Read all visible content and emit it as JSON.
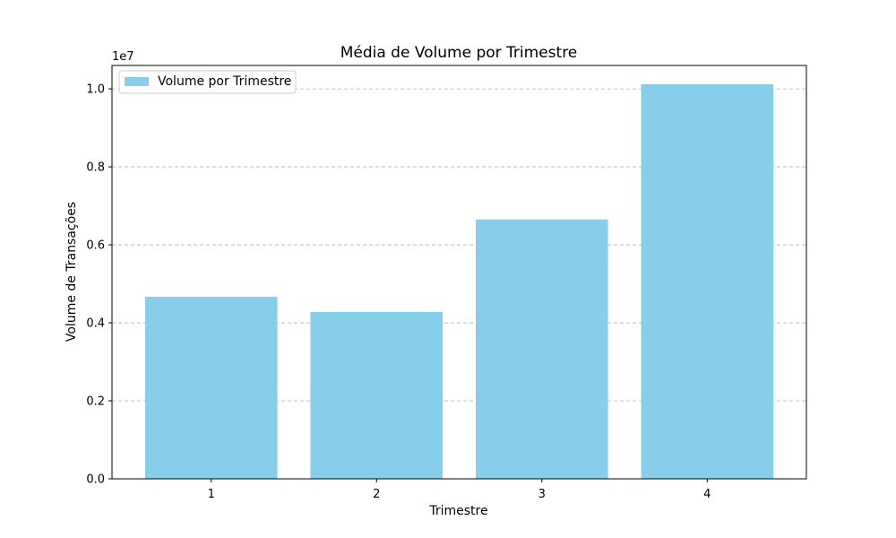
{
  "chart_data": {
    "type": "bar",
    "title": "Média de Volume por Trimestre",
    "xlabel": "Trimestre",
    "ylabel": "Volume de Transações",
    "y_scale_label": "1e7",
    "categories": [
      "1",
      "2",
      "3",
      "4"
    ],
    "series": [
      {
        "name": "Volume por Trimestre",
        "values": [
          4670000,
          4280000,
          6650000,
          10120000
        ],
        "color": "#87CEEB"
      }
    ],
    "ylim": [
      0,
      10600000
    ],
    "yticks": [
      0,
      2000000,
      4000000,
      6000000,
      8000000,
      10000000
    ],
    "ytick_labels": [
      "0.0",
      "0.2",
      "0.4",
      "0.6",
      "0.8",
      "1.0"
    ],
    "grid": "y-dashed",
    "legend": "top-left"
  }
}
